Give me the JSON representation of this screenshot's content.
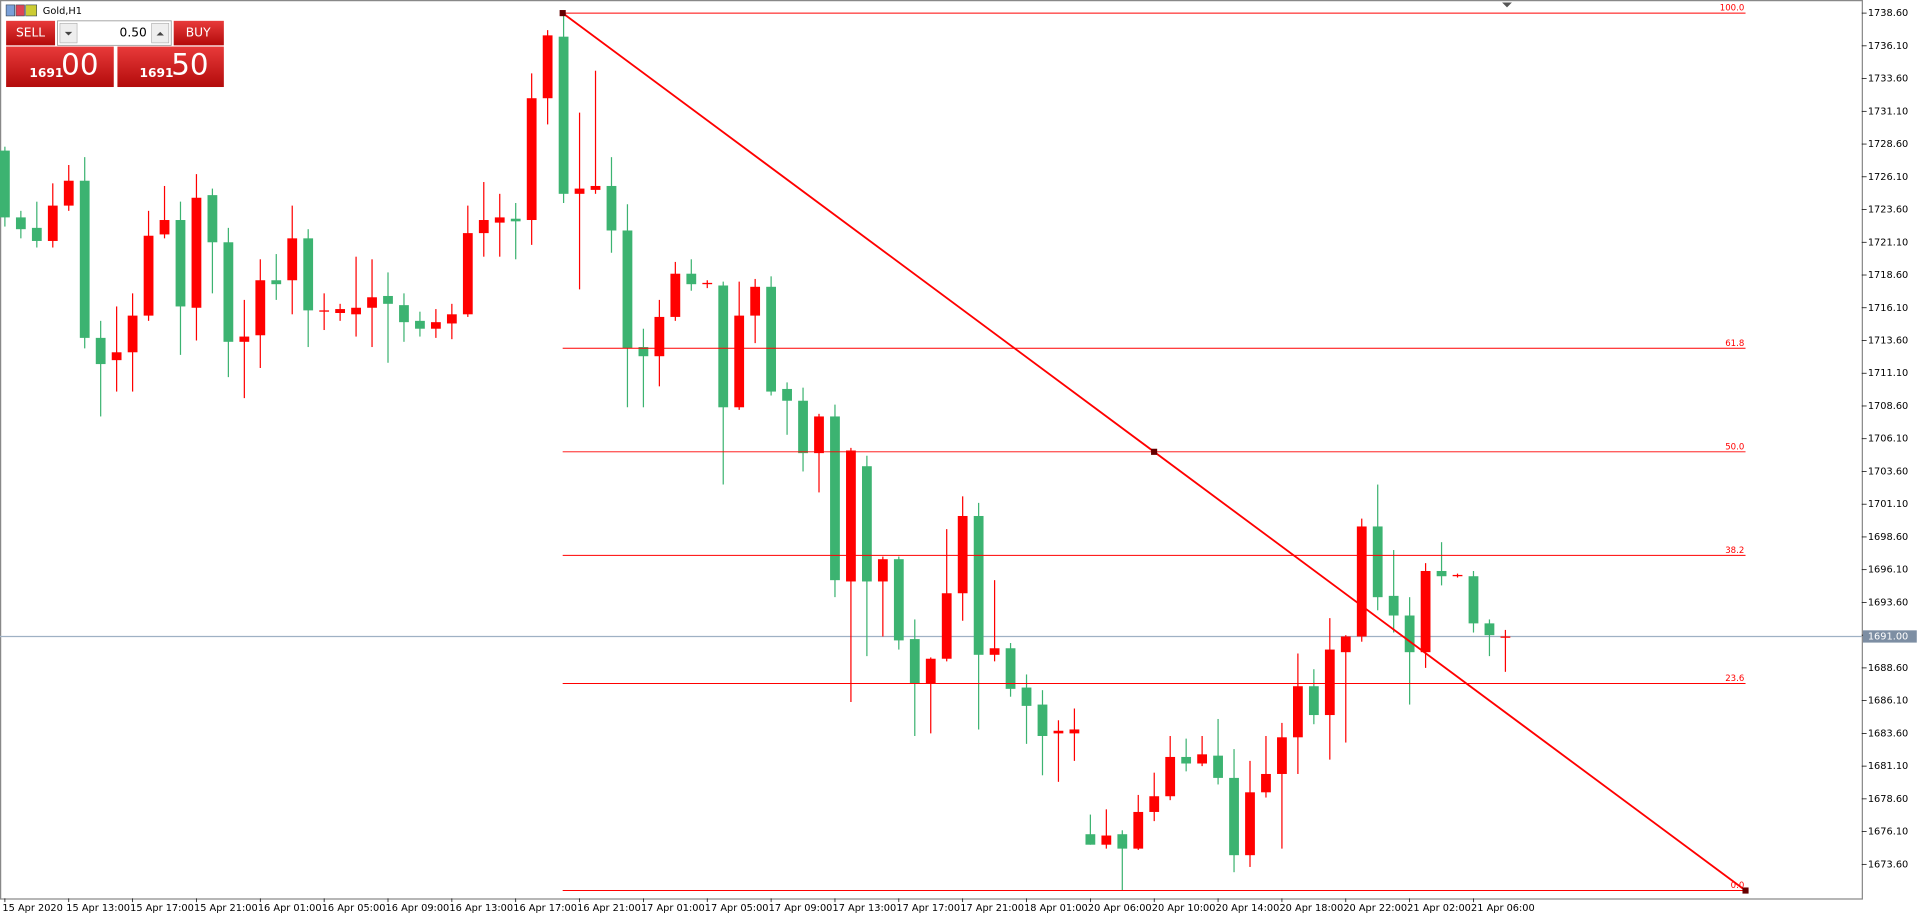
{
  "window_title": "Gold,H1",
  "trade_panel": {
    "sell": "SELL",
    "lot": "0.50",
    "buy": "BUY",
    "bid_big": "1691",
    "bid_small": "00",
    "ask_big": "1691",
    "ask_small": "50"
  },
  "chart_data": {
    "type": "candlestick",
    "categories": [
      "15 Apr 2020",
      null,
      null,
      null,
      "15 Apr 13:00",
      null,
      null,
      null,
      "15 Apr 17:00",
      null,
      null,
      null,
      "15 Apr 21:00",
      null,
      null,
      null,
      "16 Apr 01:00",
      null,
      null,
      null,
      "16 Apr 05:00",
      null,
      null,
      null,
      "16 Apr 09:00",
      null,
      null,
      null,
      "16 Apr 13:00",
      null,
      null,
      null,
      "16 Apr 17:00",
      null,
      null,
      null,
      "16 Apr 21:00",
      null,
      null,
      null,
      "17 Apr 01:00",
      null,
      null,
      null,
      "17 Apr 05:00",
      null,
      null,
      null,
      "17 Apr 09:00",
      null,
      null,
      null,
      "17 Apr 13:00",
      null,
      null,
      null,
      "17 Apr 17:00",
      null,
      null,
      null,
      "17 Apr 21:00",
      null,
      null,
      null,
      "18 Apr 01:00",
      null,
      null,
      null,
      "20 Apr 06:00",
      null,
      null,
      null,
      "20 Apr 10:00",
      null,
      null,
      null,
      "20 Apr 14:00",
      null,
      null,
      null,
      "20 Apr 18:00",
      null,
      null,
      null,
      "20 Apr 22:00",
      null,
      null,
      null,
      "21 Apr 02:00",
      null,
      null,
      null,
      "21 Apr 06:00",
      null,
      null
    ],
    "open": [
      1728.1,
      1723.0,
      1722.2,
      1721.2,
      1723.9,
      1725.8,
      1713.8,
      1712.1,
      1712.7,
      1715.5,
      1721.7,
      1722.8,
      1716.1,
      1724.7,
      1721.1,
      1713.5,
      1714.0,
      1718.2,
      1718.2,
      1721.4,
      1715.8,
      1715.7,
      1715.6,
      1716.1,
      1717.0,
      1716.3,
      1715.1,
      1714.5,
      1714.9,
      1715.6,
      1721.8,
      1722.6,
      1722.9,
      1722.8,
      1732.1,
      1736.8,
      1724.8,
      1725.1,
      1725.4,
      1722.0,
      1713.1,
      1712.4,
      1715.4,
      1718.7,
      1717.9,
      1717.8,
      1708.5,
      1715.5,
      1717.7,
      1709.9,
      1709.0,
      1705.0,
      1707.8,
      1695.2,
      1704.0,
      1695.2,
      1696.9,
      1690.8,
      1687.4,
      1689.3,
      1694.3,
      1700.2,
      1689.6,
      1690.1,
      1687.1,
      1685.8,
      1683.6,
      1683.6,
      1675.9,
      1675.1,
      1675.9,
      1674.8,
      1677.6,
      1678.8,
      1681.8,
      1681.3,
      1681.9,
      1680.2,
      1674.3,
      1679.1,
      1680.5,
      1683.3,
      1687.2,
      1685.0,
      1689.8,
      1691.0,
      1699.4,
      1694.1,
      1692.6,
      1689.8,
      1696.0,
      1695.6,
      1695.6,
      1692.0,
      1690.9
    ],
    "high": [
      1728.4,
      1723.5,
      1724.2,
      1725.6,
      1727.0,
      1727.6,
      1715.1,
      1716.2,
      1717.2,
      1723.5,
      1725.4,
      1724.2,
      1726.3,
      1725.2,
      1722.2,
      1716.7,
      1719.8,
      1720.2,
      1723.9,
      1722.1,
      1717.2,
      1716.4,
      1720.0,
      1719.8,
      1718.8,
      1717.2,
      1715.8,
      1716.0,
      1716.4,
      1723.9,
      1725.7,
      1724.8,
      1724.1,
      1734.0,
      1737.3,
      1738.6,
      1731.0,
      1734.2,
      1727.6,
      1724.0,
      1714.5,
      1716.7,
      1719.6,
      1719.8,
      1718.2,
      1718.1,
      1718.1,
      1718.3,
      1718.5,
      1710.4,
      1710.0,
      1708.0,
      1708.7,
      1705.4,
      1704.8,
      1697.1,
      1697.1,
      1692.3,
      1689.4,
      1699.2,
      1701.7,
      1701.2,
      1695.3,
      1690.5,
      1688.1,
      1686.9,
      1684.6,
      1685.5,
      1677.4,
      1677.8,
      1676.2,
      1678.9,
      1680.6,
      1683.4,
      1683.2,
      1683.4,
      1684.7,
      1682.4,
      1681.5,
      1683.4,
      1684.4,
      1689.7,
      1688.5,
      1692.4,
      1691.1,
      1700.0,
      1702.6,
      1697.6,
      1694.0,
      1696.6,
      1698.2,
      1695.8,
      1696.0,
      1692.3,
      1691.5
    ],
    "low": [
      1722.3,
      1721.4,
      1720.7,
      1720.7,
      1723.5,
      1713.0,
      1707.8,
      1709.7,
      1709.7,
      1715.1,
      1721.4,
      1712.5,
      1713.6,
      1717.2,
      1710.8,
      1709.2,
      1711.5,
      1716.7,
      1715.6,
      1713.1,
      1714.4,
      1715.1,
      1713.9,
      1713.1,
      1711.9,
      1713.5,
      1713.9,
      1713.8,
      1713.7,
      1715.4,
      1720.0,
      1720.0,
      1719.8,
      1720.9,
      1730.1,
      1724.1,
      1717.5,
      1724.8,
      1720.3,
      1708.5,
      1708.5,
      1710.1,
      1715.1,
      1717.4,
      1717.6,
      1702.6,
      1708.3,
      1713.4,
      1709.4,
      1706.4,
      1703.6,
      1702.0,
      1694.0,
      1686.0,
      1689.5,
      1691.0,
      1690.0,
      1683.4,
      1683.6,
      1689.1,
      1692.2,
      1683.9,
      1689.1,
      1686.4,
      1682.8,
      1680.4,
      1679.9,
      1681.5,
      1675.1,
      1674.8,
      1671.6,
      1674.7,
      1676.9,
      1678.5,
      1680.7,
      1681.1,
      1679.7,
      1673.0,
      1673.4,
      1678.7,
      1674.8,
      1680.5,
      1684.3,
      1681.6,
      1682.9,
      1690.6,
      1693.0,
      1691.3,
      1685.8,
      1688.6,
      1694.9,
      1695.5,
      1691.3,
      1689.5,
      1688.3
    ],
    "close": [
      1723.0,
      1722.1,
      1721.2,
      1723.9,
      1725.8,
      1713.8,
      1711.8,
      1712.7,
      1715.5,
      1721.6,
      1722.8,
      1716.2,
      1724.5,
      1721.1,
      1713.5,
      1713.9,
      1718.2,
      1717.9,
      1721.4,
      1715.9,
      1715.9,
      1716.0,
      1716.1,
      1716.9,
      1716.4,
      1715.0,
      1714.5,
      1715.0,
      1715.6,
      1721.8,
      1722.8,
      1723.0,
      1722.7,
      1732.1,
      1736.9,
      1724.8,
      1725.2,
      1725.4,
      1722.0,
      1713.0,
      1712.4,
      1715.4,
      1718.7,
      1717.9,
      1718.0,
      1708.5,
      1715.5,
      1717.7,
      1709.7,
      1709.0,
      1705.0,
      1707.8,
      1695.3,
      1705.2,
      1695.2,
      1696.9,
      1690.7,
      1687.4,
      1689.3,
      1694.3,
      1700.2,
      1689.6,
      1690.1,
      1687.0,
      1685.7,
      1683.4,
      1683.8,
      1683.9,
      1675.1,
      1675.8,
      1674.8,
      1677.6,
      1678.8,
      1681.8,
      1681.3,
      1682.0,
      1680.2,
      1674.3,
      1679.1,
      1680.5,
      1683.3,
      1687.2,
      1685.0,
      1690.0,
      1691.0,
      1699.4,
      1694.0,
      1692.6,
      1689.8,
      1696.0,
      1695.6,
      1695.7,
      1692.0,
      1691.1,
      1691.0
    ],
    "up_color": "#ff0000",
    "down_color": "#3cb371",
    "ylim": [
      1671.0,
      1739.6
    ],
    "yticks": [
      {
        "value": 1673.6,
        "label": "1673.60"
      },
      {
        "value": 1676.1,
        "label": "1676.10"
      },
      {
        "value": 1678.6,
        "label": "1678.60"
      },
      {
        "value": 1681.1,
        "label": "1681.10"
      },
      {
        "value": 1683.6,
        "label": "1683.60"
      },
      {
        "value": 1686.1,
        "label": "1686.10"
      },
      {
        "value": 1688.6,
        "label": "1688.60"
      },
      {
        "value": 1691.1,
        "label": "1691.10"
      },
      {
        "value": 1693.6,
        "label": "1693.60"
      },
      {
        "value": 1696.1,
        "label": "1696.10"
      },
      {
        "value": 1698.6,
        "label": "1698.60"
      },
      {
        "value": 1701.1,
        "label": "1701.10"
      },
      {
        "value": 1703.6,
        "label": "1703.60"
      },
      {
        "value": 1706.1,
        "label": "1706.10"
      },
      {
        "value": 1708.6,
        "label": "1708.60"
      },
      {
        "value": 1711.1,
        "label": "1711.10"
      },
      {
        "value": 1713.6,
        "label": "1713.60"
      },
      {
        "value": 1716.1,
        "label": "1716.10"
      },
      {
        "value": 1718.6,
        "label": "1718.60"
      },
      {
        "value": 1721.1,
        "label": "1721.10"
      },
      {
        "value": 1723.6,
        "label": "1723.60"
      },
      {
        "value": 1726.1,
        "label": "1726.10"
      },
      {
        "value": 1728.6,
        "label": "1728.60"
      },
      {
        "value": 1731.1,
        "label": "1731.10"
      },
      {
        "value": 1733.6,
        "label": "1733.60"
      },
      {
        "value": 1736.1,
        "label": "1736.10"
      },
      {
        "value": 1738.6,
        "label": "1738.60"
      }
    ],
    "current_price": {
      "value": 1691.0,
      "label": "1691.00"
    },
    "fibonacci": {
      "high": 1738.6,
      "low": 1671.6,
      "color": "#ff0000",
      "levels": [
        {
          "value": 100,
          "label": "100.0"
        },
        {
          "value": 61.8,
          "label": "61.8"
        },
        {
          "value": 50,
          "label": "50.0"
        },
        {
          "value": 38.2,
          "label": "38.2"
        },
        {
          "value": 23.6,
          "label": "23.6"
        },
        {
          "value": 0,
          "label": "0.0"
        }
      ]
    }
  }
}
